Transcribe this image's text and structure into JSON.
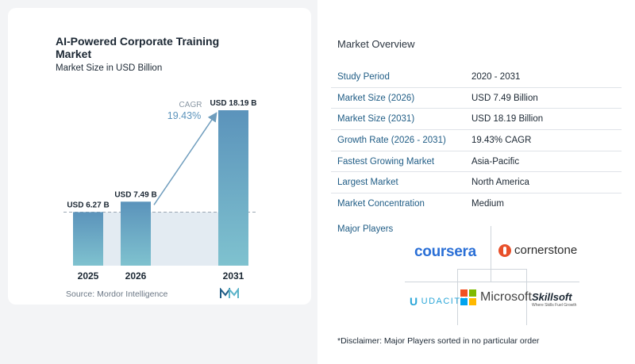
{
  "chart_data": {
    "type": "bar",
    "title": "AI-Powered Corporate Training Market",
    "subtitle": "Market Size in USD Billion",
    "categories": [
      "2025",
      "2026",
      "2031"
    ],
    "values": [
      6.27,
      7.49,
      18.19
    ],
    "value_labels": [
      "USD 6.27 B",
      "USD 7.49 B",
      "USD 18.19 B"
    ],
    "cagr_label": "CAGR",
    "cagr_value": "19.43%",
    "ylim": [
      0,
      18.19
    ],
    "colors": {
      "bar_top": "#5b93bb",
      "bar_bottom": "#7fc2cf",
      "band": "#e3ebf2",
      "arrow": "#6f9dbd",
      "cagr_text": "#5b93bb"
    }
  },
  "source": "Source: Mordor Intelligence",
  "overview": {
    "title": "Market Overview",
    "rows": [
      {
        "label": "Study Period",
        "value": "2020 - 2031"
      },
      {
        "label": "Market Size (2026)",
        "value": "USD 7.49 Billion"
      },
      {
        "label": "Market Size (2031)",
        "value": "USD 18.19 Billion"
      },
      {
        "label": "Growth Rate (2026 - 2031)",
        "value": "19.43% CAGR"
      },
      {
        "label": "Fastest Growing Market",
        "value": "Asia-Pacific"
      },
      {
        "label": "Largest Market",
        "value": "North America"
      },
      {
        "label": "Market Concentration",
        "value": "Medium"
      }
    ]
  },
  "major_players": {
    "title": "Major Players",
    "logos": {
      "coursera": "coursera",
      "cornerstone": "cornerstone",
      "udacity": "UDACITY",
      "microsoft": "Microsoft",
      "skillsoft": "Skillsoft",
      "skillsoft_tagline": "Where Skills Fuel Growth"
    }
  },
  "disclaimer": "*Disclaimer: Major Players sorted in no particular order"
}
